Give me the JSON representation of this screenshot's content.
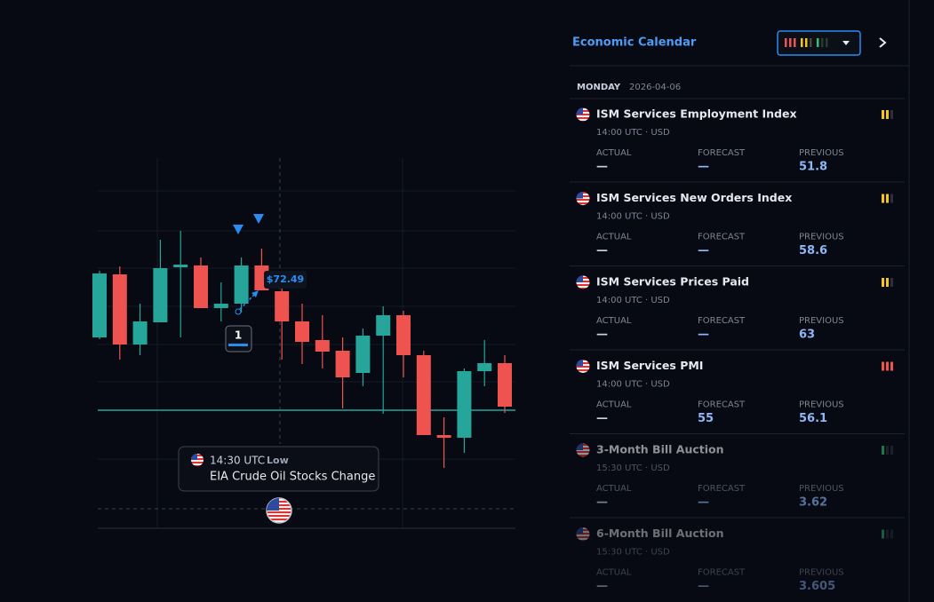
{
  "chart_data": {
    "type": "candlestick",
    "candles": [
      {
        "open": 71.84,
        "high": 72.59,
        "low": 71.82,
        "close": 72.56
      },
      {
        "open": 72.55,
        "high": 72.64,
        "low": 71.59,
        "close": 71.76
      },
      {
        "open": 71.76,
        "high": 72.22,
        "low": 71.64,
        "close": 72.02
      },
      {
        "open": 72.01,
        "high": 72.94,
        "low": 72.01,
        "close": 72.62
      },
      {
        "open": 72.63,
        "high": 73.04,
        "low": 71.84,
        "close": 72.66
      },
      {
        "open": 72.65,
        "high": 72.74,
        "low": 72.17,
        "close": 72.17
      },
      {
        "open": 72.17,
        "high": 72.46,
        "low": 72.02,
        "close": 72.22
      },
      {
        "open": 72.22,
        "high": 72.74,
        "low": 72.12,
        "close": 72.65
      },
      {
        "open": 72.65,
        "high": 72.84,
        "low": 72.37,
        "close": 72.37
      },
      {
        "open": 72.36,
        "high": 72.44,
        "low": 71.59,
        "close": 72.02
      },
      {
        "open": 72.02,
        "high": 72.22,
        "low": 71.54,
        "close": 71.79
      },
      {
        "open": 71.81,
        "high": 72.09,
        "low": 71.49,
        "close": 71.68
      },
      {
        "open": 71.69,
        "high": 71.84,
        "low": 71.04,
        "close": 71.39
      },
      {
        "open": 71.44,
        "high": 71.94,
        "low": 71.29,
        "close": 71.86
      },
      {
        "open": 71.86,
        "high": 72.19,
        "low": 70.98,
        "close": 72.09
      },
      {
        "open": 72.09,
        "high": 72.14,
        "low": 71.39,
        "close": 71.64
      },
      {
        "open": 71.64,
        "high": 71.69,
        "low": 70.74,
        "close": 70.74
      },
      {
        "open": 70.74,
        "high": 70.94,
        "low": 70.37,
        "close": 70.71
      },
      {
        "open": 70.71,
        "high": 71.49,
        "low": 70.54,
        "close": 71.46
      },
      {
        "open": 71.46,
        "high": 71.81,
        "low": 71.29,
        "close": 71.55
      },
      {
        "open": 71.55,
        "high": 71.64,
        "low": 70.99,
        "close": 71.06
      }
    ],
    "up_color": "#26a69a",
    "down_color": "#ef5350",
    "ylim": [
      69.69,
      73.84
    ],
    "price_line": 71.02,
    "price_label": "$72.49",
    "marker_price": 72.49,
    "badge": "1",
    "event_tooltip": {
      "time": "14:30 UTC",
      "impact": "Low",
      "name": "EIA Crude Oil Stocks Change"
    }
  },
  "calendar": {
    "title": "Economic Calendar",
    "day": "MONDAY",
    "date": "2026-04-06",
    "column_labels": [
      "ACTUAL",
      "FORECAST",
      "PREVIOUS"
    ],
    "events": [
      {
        "name": "ISM Services Employment Index",
        "time": "14:00 UTC · USD",
        "actual": "—",
        "forecast": "—",
        "previous": "51.8",
        "impact": 2,
        "impact_color": "#f5c518"
      },
      {
        "name": "ISM Services New Orders Index",
        "time": "14:00 UTC · USD",
        "actual": "—",
        "forecast": "—",
        "previous": "58.6",
        "impact": 2,
        "impact_color": "#f5c518"
      },
      {
        "name": "ISM Services Prices Paid",
        "time": "14:00 UTC · USD",
        "actual": "—",
        "forecast": "—",
        "previous": "63",
        "impact": 2,
        "impact_color": "#f5c518"
      },
      {
        "name": "ISM Services PMI",
        "time": "14:00 UTC · USD",
        "actual": "—",
        "forecast": "55",
        "previous": "56.1",
        "impact": 3,
        "impact_color": "#ef5350"
      },
      {
        "name": "3-Month Bill Auction",
        "time": "15:30 UTC · USD",
        "actual": "—",
        "forecast": "—",
        "previous": "3.62",
        "impact": 1,
        "impact_color": "#2fbf71"
      },
      {
        "name": "6-Month Bill Auction",
        "time": "15:30 UTC · USD",
        "actual": "—",
        "forecast": "—",
        "previous": "3.605",
        "impact": 1,
        "impact_color": "#2fbf71"
      }
    ]
  }
}
